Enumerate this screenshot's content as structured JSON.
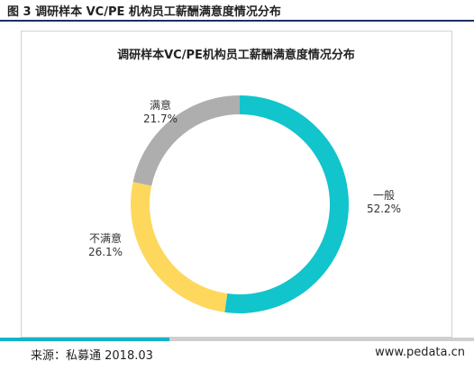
{
  "figure": {
    "caption": "图 3 调研样本 VC/PE 机构员工薪酬满意度情况分布"
  },
  "footer": {
    "source": "来源：私募通 2018.03",
    "site": "www.pedata.cn"
  },
  "colors": {
    "frame_rule": "#1c2f63",
    "footer_accent": "#12b4c8",
    "footer_light": "#cfcfcf"
  },
  "chart_data": {
    "type": "pie",
    "style": "donut",
    "title": "调研样本VC/PE机构员工薪酬满意度情况分布",
    "slices": [
      {
        "label": "一般",
        "value": 52.2,
        "display": "52.2%",
        "color": "#12c4cc"
      },
      {
        "label": "不满意",
        "value": 26.1,
        "display": "26.1%",
        "color": "#fdd85d"
      },
      {
        "label": "满意",
        "value": 21.7,
        "display": "21.7%",
        "color": "#aeaeae"
      }
    ],
    "start": "top",
    "direction": "clockwise",
    "legend": "none"
  }
}
